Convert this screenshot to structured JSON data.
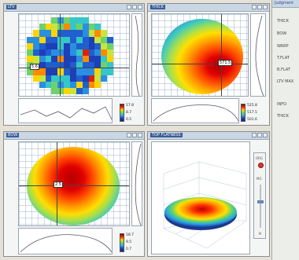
{
  "window": {
    "panels": [
      {
        "title": "LTV",
        "legend": [
          "17.8",
          "8.7",
          "0.5"
        ],
        "cursor_value": "5.6"
      },
      {
        "title": "THICK",
        "legend": [
          "525.8",
          "517.5",
          "501.6"
        ],
        "cursor_value": "571.5"
      },
      {
        "title": "BOW",
        "legend": [
          "18.7",
          "9.5",
          "0.7"
        ],
        "cursor_value": "2.5"
      },
      {
        "title": "TOP FLATNESS"
      }
    ]
  },
  "right_panel": {
    "header": "Judgment",
    "items": [
      "THICK",
      "BOW",
      "WARP",
      "T.FLAT",
      "B.FLAT",
      "LTV MAX",
      "INFO",
      "THICK"
    ]
  },
  "view3d": {
    "controls": [
      "ORG",
      "MG",
      "N"
    ]
  },
  "colors": {
    "accent": "#3a5f97",
    "heat_high": "#c40000",
    "heat_mid": "#ffd400",
    "heat_low": "#1d3fb8"
  }
}
